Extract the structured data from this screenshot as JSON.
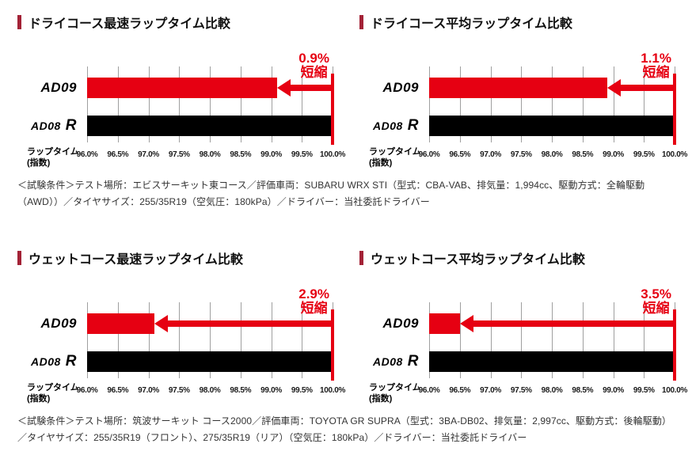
{
  "labels": {
    "ad09": "AD09",
    "ad08": "AD08",
    "ad08_suffix": "R",
    "axis_caption_line1": "ラップタイム",
    "axis_caption_line2": "(指数)"
  },
  "conditions": {
    "dry": "＜試験条件＞テスト場所：エビスサーキット東コース／評価車両：SUBARU WRX STI（型式：CBA-VAB、排気量：1,994cc、駆動方式：全輪駆動（AWD））／タイヤサイズ：255/35R19（空気圧：180kPa）／ドライバー：当社委託ドライバー",
    "wet": "＜試験条件＞テスト場所：筑波サーキット コース2000／評価車両：TOYOTA GR SUPRA（型式：3BA-DB02、排気量：2,997cc、駆動方式：後輪駆動）／タイヤサイズ：255/35R19（フロント）、275/35R19（リア）（空気圧：180kPa）／ドライバー：当社委託ドライバー"
  },
  "colors": {
    "brand_red": "#e60012",
    "title_marker_red": "#a32236",
    "bar_black": "#000000",
    "gridline_gray": "#9f9f9f"
  },
  "chart_data": [
    {
      "type": "bar",
      "orientation": "horizontal",
      "title": "ドライコース最速ラップタイム比較",
      "categories": [
        "AD09",
        "AD08 R"
      ],
      "values": [
        99.1,
        100.0
      ],
      "series_colors": [
        "#e60012",
        "#000000"
      ],
      "xlabel": "ラップタイム（指数）",
      "xlim": [
        96.0,
        100.0
      ],
      "xticks": [
        "96.0%",
        "96.5%",
        "97.0%",
        "97.5%",
        "98.0%",
        "98.5%",
        "99.0%",
        "99.5%",
        "100.0%"
      ],
      "annotation_value": "0.9%",
      "annotation_word": "短縮",
      "grid": true,
      "legend": false
    },
    {
      "type": "bar",
      "orientation": "horizontal",
      "title": "ドライコース平均ラップタイム比較",
      "categories": [
        "AD09",
        "AD08 R"
      ],
      "values": [
        98.9,
        100.0
      ],
      "series_colors": [
        "#e60012",
        "#000000"
      ],
      "xlabel": "ラップタイム（指数）",
      "xlim": [
        96.0,
        100.0
      ],
      "xticks": [
        "96.0%",
        "96.5%",
        "97.0%",
        "97.5%",
        "98.0%",
        "98.5%",
        "99.0%",
        "99.5%",
        "100.0%"
      ],
      "annotation_value": "1.1%",
      "annotation_word": "短縮",
      "grid": true,
      "legend": false
    },
    {
      "type": "bar",
      "orientation": "horizontal",
      "title": "ウェットコース最速ラップタイム比較",
      "categories": [
        "AD09",
        "AD08 R"
      ],
      "values": [
        97.1,
        100.0
      ],
      "series_colors": [
        "#e60012",
        "#000000"
      ],
      "xlabel": "ラップタイム（指数）",
      "xlim": [
        96.0,
        100.0
      ],
      "xticks": [
        "96.0%",
        "96.5%",
        "97.0%",
        "97.5%",
        "98.0%",
        "98.5%",
        "99.0%",
        "99.5%",
        "100.0%"
      ],
      "annotation_value": "2.9%",
      "annotation_word": "短縮",
      "grid": true,
      "legend": false
    },
    {
      "type": "bar",
      "orientation": "horizontal",
      "title": "ウェットコース平均ラップタイム比較",
      "categories": [
        "AD09",
        "AD08 R"
      ],
      "values": [
        96.5,
        100.0
      ],
      "series_colors": [
        "#e60012",
        "#000000"
      ],
      "xlabel": "ラップタイム（指数）",
      "xlim": [
        96.0,
        100.0
      ],
      "xticks": [
        "96.0%",
        "96.5%",
        "97.0%",
        "97.5%",
        "98.0%",
        "98.5%",
        "99.0%",
        "99.5%",
        "100.0%"
      ],
      "annotation_value": "3.5%",
      "annotation_word": "短縮",
      "grid": true,
      "legend": false
    }
  ]
}
